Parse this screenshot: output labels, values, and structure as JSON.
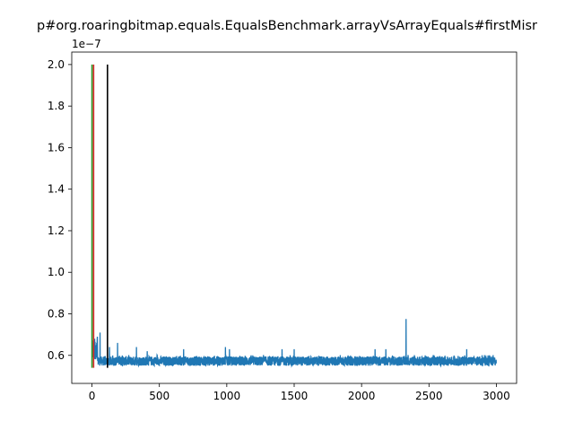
{
  "chart_data": {
    "type": "line",
    "title": "p#org.roaringbitmap.equals.EqualsBenchmark.arrayVsArrayEquals#firstMisr",
    "xlabel": "",
    "ylabel": "",
    "y_offset_label": "1e−7",
    "xlim": [
      -150,
      3150
    ],
    "ylim": [
      0.465,
      2.06
    ],
    "x_ticks": [
      0,
      500,
      1000,
      1500,
      2000,
      2500,
      3000
    ],
    "x_tick_labels": [
      "0",
      "500",
      "1000",
      "1500",
      "2000",
      "2500",
      "3000"
    ],
    "y_ticks": [
      0.6,
      0.8,
      1.0,
      1.2,
      1.4,
      1.6,
      1.8,
      2.0
    ],
    "y_tick_labels": [
      "0.6",
      "0.8",
      "1.0",
      "1.2",
      "1.4",
      "1.6",
      "1.8",
      "2.0"
    ],
    "grid": false,
    "series": [
      {
        "color": "#1f77b4",
        "n_points": 3000,
        "baseline": 0.575,
        "spikes": [
          {
            "x": 20,
            "y": 0.68
          },
          {
            "x": 40,
            "y": 0.69
          },
          {
            "x": 60,
            "y": 0.71
          },
          {
            "x": 130,
            "y": 0.64
          },
          {
            "x": 190,
            "y": 0.66
          },
          {
            "x": 330,
            "y": 0.64
          },
          {
            "x": 410,
            "y": 0.62
          },
          {
            "x": 680,
            "y": 0.63
          },
          {
            "x": 990,
            "y": 0.64
          },
          {
            "x": 1020,
            "y": 0.63
          },
          {
            "x": 1410,
            "y": 0.63
          },
          {
            "x": 1500,
            "y": 0.63
          },
          {
            "x": 2100,
            "y": 0.63
          },
          {
            "x": 2180,
            "y": 0.63
          },
          {
            "x": 2330,
            "y": 0.775
          },
          {
            "x": 2780,
            "y": 0.63
          }
        ]
      }
    ],
    "vertical_lines": [
      {
        "x": 0,
        "y0": 0.54,
        "y1": 2.0,
        "color": "#2ca02c"
      },
      {
        "x": 12,
        "y0": 0.54,
        "y1": 2.0,
        "color": "#d62728"
      },
      {
        "x": 115,
        "y0": 0.54,
        "y1": 2.0,
        "color": "#000000"
      }
    ]
  }
}
